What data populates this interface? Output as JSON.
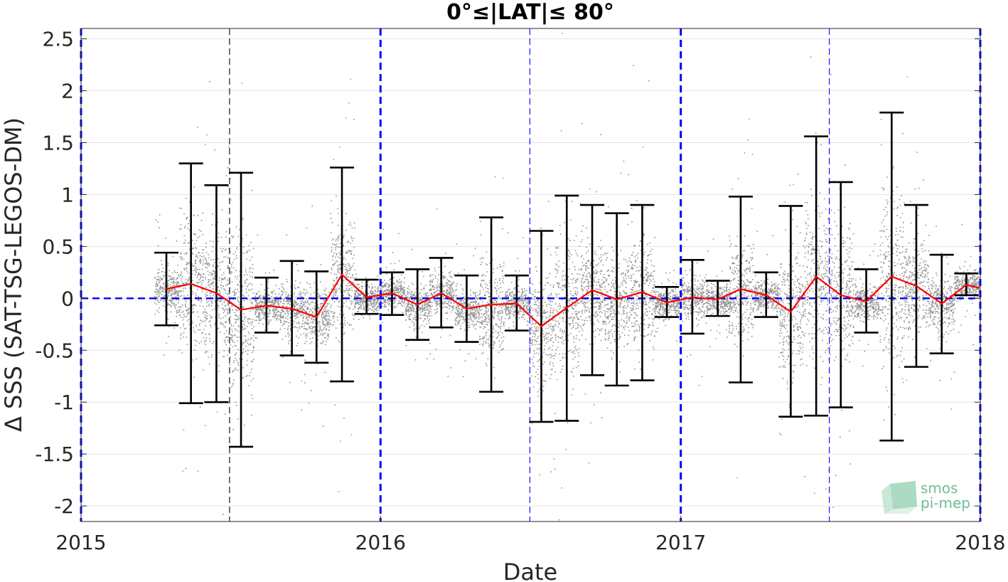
{
  "chart_data": {
    "type": "scatter",
    "title": "0°≤|LAT|≤ 80°",
    "xlabel": "Date",
    "ylabel": "Δ SSS (SAT-TSG-LEGOS-DM)",
    "xlim": [
      "2015-01-01",
      "2018-01-01"
    ],
    "ylim": [
      -2.15,
      2.6
    ],
    "x_ticks": [
      "2015",
      "2016",
      "2017",
      "2018"
    ],
    "y_ticks": [
      "2.5",
      "2",
      "1.5",
      "1",
      "0.5",
      "0",
      "-0.5",
      "-1",
      "-1.5",
      "-2"
    ],
    "grid": "horizontal",
    "series": [
      {
        "kind": "monthly-mean-line",
        "color": "#ff0000",
        "points": [
          {
            "x": "2015-04-15",
            "y": 0.09,
            "low": -0.26,
            "high": 0.44
          },
          {
            "x": "2015-05-15",
            "y": 0.14,
            "low": -1.01,
            "high": 1.3
          },
          {
            "x": "2015-06-15",
            "y": 0.05,
            "low": -1.0,
            "high": 1.09
          },
          {
            "x": "2015-07-15",
            "y": -0.11,
            "low": -1.43,
            "high": 1.21
          },
          {
            "x": "2015-08-15",
            "y": -0.07,
            "low": -0.33,
            "high": 0.2
          },
          {
            "x": "2015-09-15",
            "y": -0.1,
            "low": -0.55,
            "high": 0.36
          },
          {
            "x": "2015-10-15",
            "y": -0.18,
            "low": -0.62,
            "high": 0.26
          },
          {
            "x": "2015-11-15",
            "y": 0.23,
            "low": -0.8,
            "high": 1.26
          },
          {
            "x": "2015-12-15",
            "y": 0.01,
            "low": -0.15,
            "high": 0.18
          },
          {
            "x": "2016-01-15",
            "y": 0.05,
            "low": -0.16,
            "high": 0.25
          },
          {
            "x": "2016-02-15",
            "y": -0.06,
            "low": -0.4,
            "high": 0.28
          },
          {
            "x": "2016-03-15",
            "y": 0.05,
            "low": -0.28,
            "high": 0.39
          },
          {
            "x": "2016-04-15",
            "y": -0.1,
            "low": -0.42,
            "high": 0.22
          },
          {
            "x": "2016-05-15",
            "y": -0.06,
            "low": -0.9,
            "high": 0.78
          },
          {
            "x": "2016-06-15",
            "y": -0.05,
            "low": -0.31,
            "high": 0.22
          },
          {
            "x": "2016-07-15",
            "y": -0.27,
            "low": -1.19,
            "high": 0.65
          },
          {
            "x": "2016-08-15",
            "y": -0.09,
            "low": -1.18,
            "high": 0.99
          },
          {
            "x": "2016-09-15",
            "y": 0.08,
            "low": -0.74,
            "high": 0.9
          },
          {
            "x": "2016-10-15",
            "y": -0.01,
            "low": -0.84,
            "high": 0.82
          },
          {
            "x": "2016-11-15",
            "y": 0.06,
            "low": -0.79,
            "high": 0.9
          },
          {
            "x": "2016-12-15",
            "y": -0.04,
            "low": -0.18,
            "high": 0.11
          },
          {
            "x": "2017-01-15",
            "y": 0.01,
            "low": -0.34,
            "high": 0.37
          },
          {
            "x": "2017-02-15",
            "y": -0.01,
            "low": -0.17,
            "high": 0.17
          },
          {
            "x": "2017-03-15",
            "y": 0.09,
            "low": -0.81,
            "high": 0.98
          },
          {
            "x": "2017-04-15",
            "y": 0.03,
            "low": -0.18,
            "high": 0.25
          },
          {
            "x": "2017-05-15",
            "y": -0.13,
            "low": -1.14,
            "high": 0.89
          },
          {
            "x": "2017-06-15",
            "y": 0.21,
            "low": -1.13,
            "high": 1.56
          },
          {
            "x": "2017-07-15",
            "y": 0.03,
            "low": -1.05,
            "high": 1.12
          },
          {
            "x": "2017-08-15",
            "y": -0.03,
            "low": -0.33,
            "high": 0.28
          },
          {
            "x": "2017-09-15",
            "y": 0.21,
            "low": -1.37,
            "high": 1.79
          },
          {
            "x": "2017-10-15",
            "y": 0.12,
            "low": -0.66,
            "high": 0.9
          },
          {
            "x": "2017-11-15",
            "y": -0.05,
            "low": -0.53,
            "high": 0.42
          },
          {
            "x": "2017-12-15",
            "y": 0.13,
            "low": 0.03,
            "high": 0.24
          },
          {
            "x": "2017-12-31",
            "y": 0.1
          }
        ]
      },
      {
        "kind": "scatter-cloud",
        "color": "#808080",
        "note": "dense individual match-up differences around each month"
      },
      {
        "kind": "reference-line",
        "color": "#0000ff",
        "y": 0
      }
    ],
    "vertical_markers": [
      {
        "x": "2015-01-01",
        "style": "thick-dashed",
        "color": "#0000ff"
      },
      {
        "x": "2015-07-01",
        "style": "thin-dashed",
        "color": "#000000"
      },
      {
        "x": "2016-01-01",
        "style": "thick-dashed",
        "color": "#0000ff"
      },
      {
        "x": "2016-07-01",
        "style": "thin-dashed",
        "color": "#0000ff"
      },
      {
        "x": "2017-01-01",
        "style": "thick-dashed",
        "color": "#0000ff"
      },
      {
        "x": "2017-07-01",
        "style": "thin-dashed",
        "color": "#0000ff"
      },
      {
        "x": "2018-01-01",
        "style": "thick-dashed",
        "color": "#0000ff"
      }
    ]
  },
  "logo": {
    "line1": "smos",
    "line2": "pi-mep",
    "color": "#6fbf98"
  }
}
